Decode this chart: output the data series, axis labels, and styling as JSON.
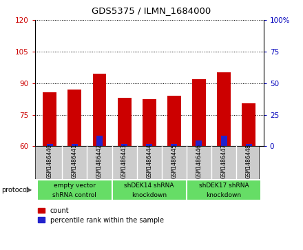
{
  "title": "GDS5375 / ILMN_1684000",
  "samples": [
    "GSM1486440",
    "GSM1486441",
    "GSM1486442",
    "GSM1486443",
    "GSM1486444",
    "GSM1486445",
    "GSM1486446",
    "GSM1486447",
    "GSM1486448"
  ],
  "count_values": [
    85.5,
    87.0,
    94.5,
    83.0,
    82.5,
    84.0,
    92.0,
    95.0,
    80.5
  ],
  "percentile_values": [
    2.0,
    2.0,
    8.5,
    2.0,
    2.0,
    2.0,
    4.5,
    8.5,
    2.0
  ],
  "ylim_left": [
    60,
    120
  ],
  "ylim_right": [
    0,
    100
  ],
  "yticks_left": [
    60,
    75,
    90,
    105,
    120
  ],
  "yticks_right": [
    0,
    25,
    50,
    75,
    100
  ],
  "yticklabels_right": [
    "0",
    "25",
    "50",
    "75",
    "100%"
  ],
  "bar_color_red": "#cc0000",
  "bar_color_blue": "#2222cc",
  "bar_width": 0.55,
  "blue_bar_width": 0.25,
  "groups": [
    {
      "label": "empty vector\nshRNA control",
      "start": 0,
      "end": 3
    },
    {
      "label": "shDEK14 shRNA\nknockdown",
      "start": 3,
      "end": 6
    },
    {
      "label": "shDEK17 shRNA\nknockdown",
      "start": 6,
      "end": 9
    }
  ],
  "protocol_label": "protocol",
  "legend_items": [
    {
      "color": "#cc0000",
      "label": "count"
    },
    {
      "color": "#2222cc",
      "label": "percentile rank within the sample"
    }
  ],
  "tick_color_left": "#cc0000",
  "tick_color_right": "#0000bb",
  "green_color": "#66dd66",
  "gray_color": "#cccccc",
  "white": "#ffffff"
}
